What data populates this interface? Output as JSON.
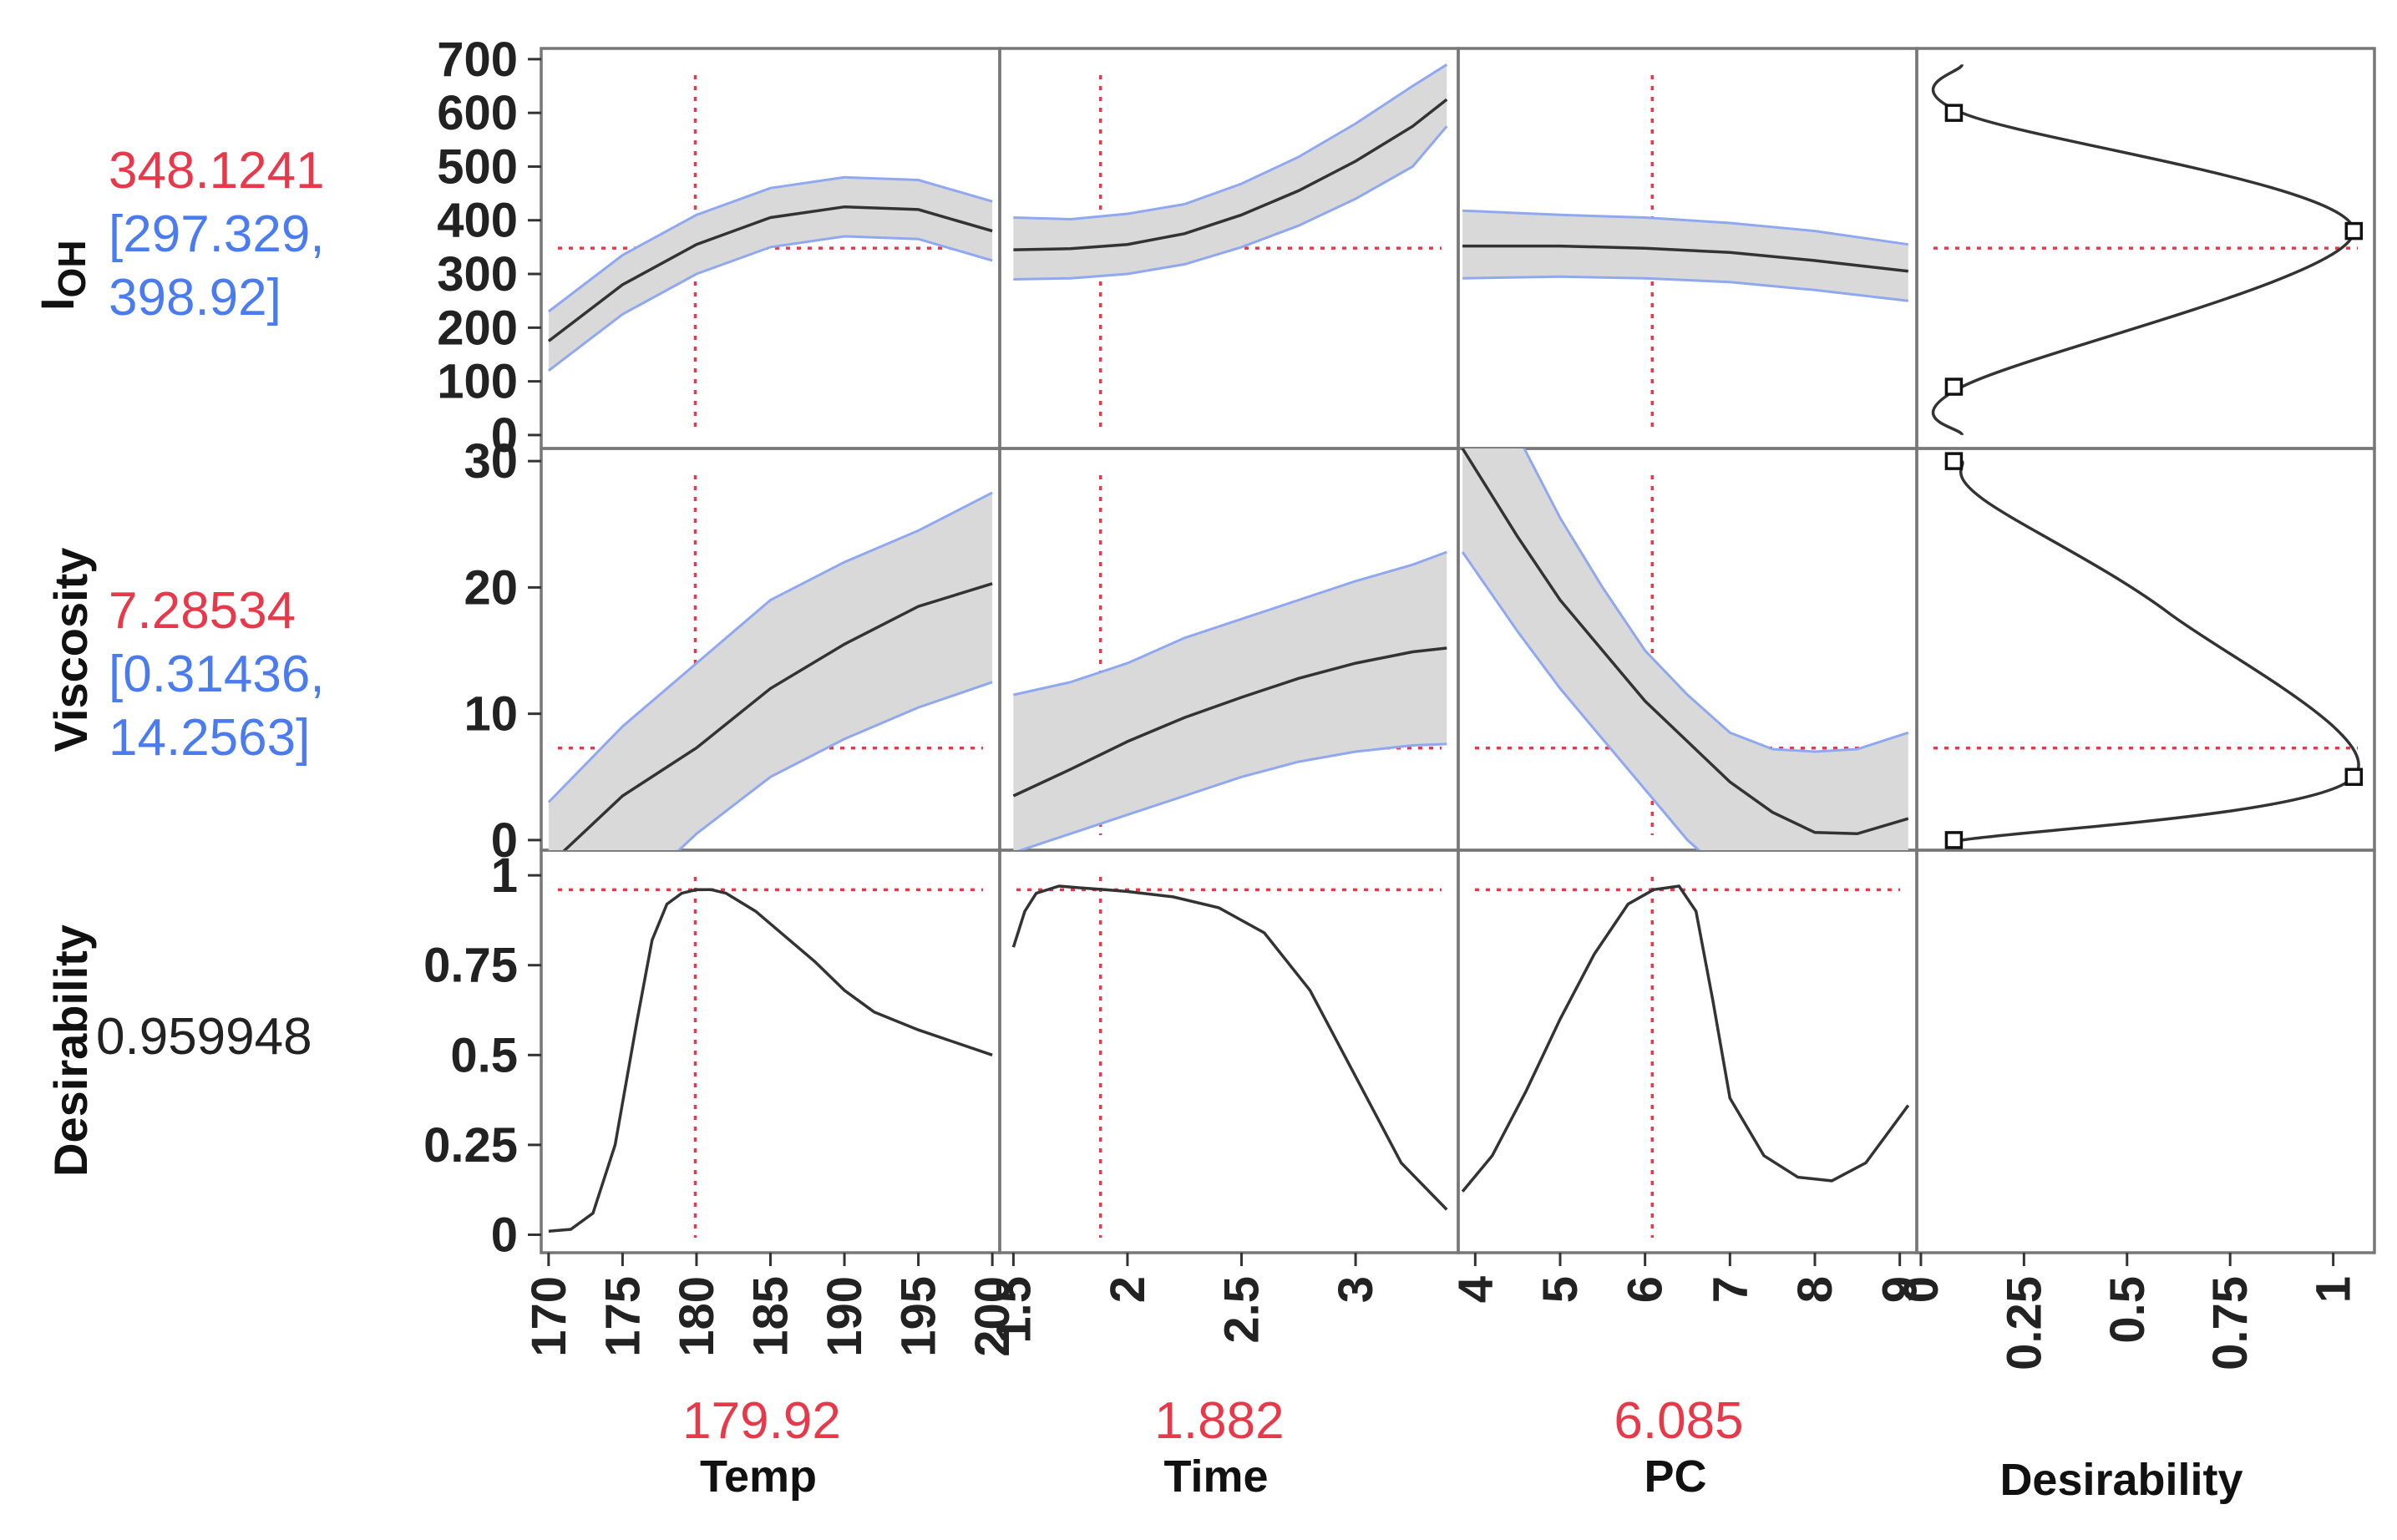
{
  "chart_data": {
    "type": "prediction-profiler",
    "colors": {
      "current": "#e8394a",
      "interval": "#4a7cf0",
      "curve": "#333333",
      "band": "#d9d9d9",
      "frame": "#777777"
    },
    "factors": [
      {
        "id": "temp",
        "name": "Temp",
        "current": 179.92,
        "current_label": "179.92",
        "range": [
          169.5,
          200.5
        ],
        "ticks": [
          "170",
          "175",
          "180",
          "185",
          "190",
          "195",
          "200"
        ],
        "tick_values": [
          170,
          175,
          180,
          185,
          190,
          195,
          200
        ]
      },
      {
        "id": "time",
        "name": "Time",
        "current": 1.882,
        "current_label": "1.882",
        "range": [
          1.44,
          3.45
        ],
        "ticks": [
          "1.5",
          "2",
          "2.5",
          "3"
        ],
        "tick_values": [
          1.5,
          2,
          2.5,
          3
        ]
      },
      {
        "id": "pc",
        "name": "PC",
        "current": 6.085,
        "current_label": "6.085",
        "range": [
          3.8,
          9.2
        ],
        "ticks": [
          "4",
          "5",
          "6",
          "7",
          "8",
          "9"
        ],
        "tick_values": [
          4,
          5,
          6,
          7,
          8,
          9
        ]
      }
    ],
    "responses": [
      {
        "id": "ioh",
        "name_main": "I",
        "name_sub": "OH",
        "current_label": "348.1241",
        "ci_lines": [
          "[297.329,",
          "398.92]"
        ],
        "range": [
          -25,
          720
        ],
        "ticks": [
          "0",
          "100",
          "200",
          "300",
          "400",
          "500",
          "600",
          "700"
        ],
        "tick_values": [
          0,
          100,
          200,
          300,
          400,
          500,
          600,
          700
        ],
        "current": 348.1241,
        "curves": [
          {
            "x": [
              170,
              175,
              180,
              185,
              190,
              195,
              200
            ],
            "y": [
              175,
              280,
              355,
              405,
              425,
              420,
              380
            ],
            "lo": [
              120,
              225,
              300,
              350,
              370,
              365,
              325
            ],
            "hi": [
              230,
              335,
              410,
              460,
              480,
              475,
              435
            ]
          },
          {
            "x": [
              1.5,
              1.75,
              2.0,
              2.25,
              2.5,
              2.75,
              3.0,
              3.25,
              3.4
            ],
            "y": [
              345,
              347,
              355,
              375,
              410,
              455,
              510,
              575,
              625
            ],
            "lo": [
              290,
              292,
              300,
              318,
              350,
              390,
              440,
              500,
              575
            ],
            "hi": [
              405,
              402,
              412,
              430,
              468,
              518,
              580,
              650,
              690
            ]
          },
          {
            "x": [
              3.85,
              5,
              6,
              7,
              8,
              9.1
            ],
            "y": [
              352,
              352,
              348,
              340,
              325,
              305
            ],
            "lo": [
              292,
              295,
              292,
              285,
              270,
              250
            ],
            "hi": [
              418,
              410,
              405,
              395,
              380,
              355
            ]
          }
        ],
        "desirability_fn": {
          "d": [
            0.1,
            0.1,
            1.05,
            0.1,
            0.1
          ],
          "y": [
            690,
            600,
            380,
            90,
            0
          ],
          "markers": [
            [
              0.08,
              600
            ],
            [
              1.05,
              380
            ],
            [
              0.08,
              90
            ]
          ]
        }
      },
      {
        "id": "viscosity",
        "name": "Viscosity",
        "current_label": "7.28534",
        "ci_lines": [
          "[0.31436,",
          "14.2563]"
        ],
        "range": [
          -0.8,
          31
        ],
        "ticks": [
          "0",
          "10",
          "20",
          "30"
        ],
        "tick_values": [
          0,
          10,
          20,
          30
        ],
        "current": 7.28534,
        "curves": [
          {
            "x": [
              170,
              175,
              180,
              185,
              190,
              195,
              200
            ],
            "y": [
              -2,
              3.5,
              7.3,
              12,
              15.5,
              18.5,
              20.3
            ],
            "lo": [
              -6,
              -5,
              0.5,
              5,
              8,
              10.5,
              12.5
            ],
            "hi": [
              3,
              9,
              14,
              19,
              22,
              24.5,
              27.5
            ]
          },
          {
            "x": [
              1.5,
              1.75,
              2.0,
              2.25,
              2.5,
              2.75,
              3.0,
              3.25,
              3.4
            ],
            "y": [
              3.5,
              5.6,
              7.8,
              9.7,
              11.3,
              12.8,
              14,
              14.9,
              15.2
            ],
            "lo": [
              -1,
              0.5,
              2,
              3.5,
              5,
              6.2,
              7,
              7.5,
              7.6
            ],
            "hi": [
              11.5,
              12.5,
              14,
              16,
              17.5,
              19,
              20.5,
              21.8,
              22.8
            ]
          },
          {
            "x": [
              3.85,
              4.5,
              5,
              5.5,
              6,
              6.5,
              7,
              7.5,
              8,
              8.5,
              9.1
            ],
            "y": [
              31,
              24,
              19,
              15,
              11,
              7.8,
              4.6,
              2.2,
              0.6,
              0.5,
              1.7
            ],
            "lo": [
              22.8,
              16.5,
              12,
              8,
              4,
              0,
              -3,
              -5,
              -6,
              -6,
              -6
            ],
            "hi": [
              40,
              32,
              25.5,
              20,
              15,
              11.5,
              8.5,
              7.2,
              7,
              7.2,
              8.5
            ]
          }
        ],
        "desirability_fn": {
          "d": [
            0.1,
            0.15,
            0.6,
            1.05,
            0.1
          ],
          "y": [
            30,
            27,
            18,
            5,
            0
          ],
          "markers": [
            [
              0.08,
              30
            ],
            [
              1.05,
              5
            ],
            [
              0.08,
              0
            ]
          ]
        }
      },
      {
        "id": "desirability",
        "name": "Desirability",
        "current_label": "0.959948",
        "range": [
          -0.05,
          1.07
        ],
        "ticks": [
          "0",
          "0.25",
          "0.5",
          "0.75",
          "1"
        ],
        "tick_values": [
          0,
          0.25,
          0.5,
          0.75,
          1
        ],
        "current": 0.959948,
        "curves": [
          {
            "x": [
              170,
              171.5,
              173,
              174.5,
              176,
              177,
              178,
              179,
              180,
              181,
              182,
              184,
              186,
              188,
              190,
              192,
              195,
              200
            ],
            "y": [
              0.01,
              0.015,
              0.06,
              0.25,
              0.6,
              0.82,
              0.92,
              0.95,
              0.96,
              0.96,
              0.95,
              0.9,
              0.83,
              0.76,
              0.68,
              0.62,
              0.57,
              0.5
            ]
          },
          {
            "x": [
              1.5,
              1.55,
              1.6,
              1.7,
              1.8,
              1.9,
              2.0,
              2.2,
              2.4,
              2.6,
              2.8,
              3.0,
              3.2,
              3.4
            ],
            "y": [
              0.8,
              0.9,
              0.95,
              0.97,
              0.965,
              0.96,
              0.955,
              0.94,
              0.91,
              0.84,
              0.68,
              0.44,
              0.2,
              0.07
            ]
          },
          {
            "x": [
              3.85,
              4.2,
              4.6,
              5,
              5.4,
              5.8,
              6.1,
              6.4,
              6.6,
              6.8,
              7,
              7.4,
              7.8,
              8.2,
              8.6,
              9.1
            ],
            "y": [
              0.12,
              0.22,
              0.4,
              0.6,
              0.78,
              0.92,
              0.96,
              0.97,
              0.9,
              0.65,
              0.38,
              0.22,
              0.16,
              0.15,
              0.2,
              0.36
            ]
          }
        ]
      }
    ],
    "desirability_axis": {
      "name": "Desirability",
      "range": [
        -0.01,
        1.1
      ],
      "ticks": [
        "0",
        "0.25",
        "0.5",
        "0.75",
        "1"
      ],
      "tick_values": [
        0,
        0.25,
        0.5,
        0.75,
        1
      ]
    }
  }
}
